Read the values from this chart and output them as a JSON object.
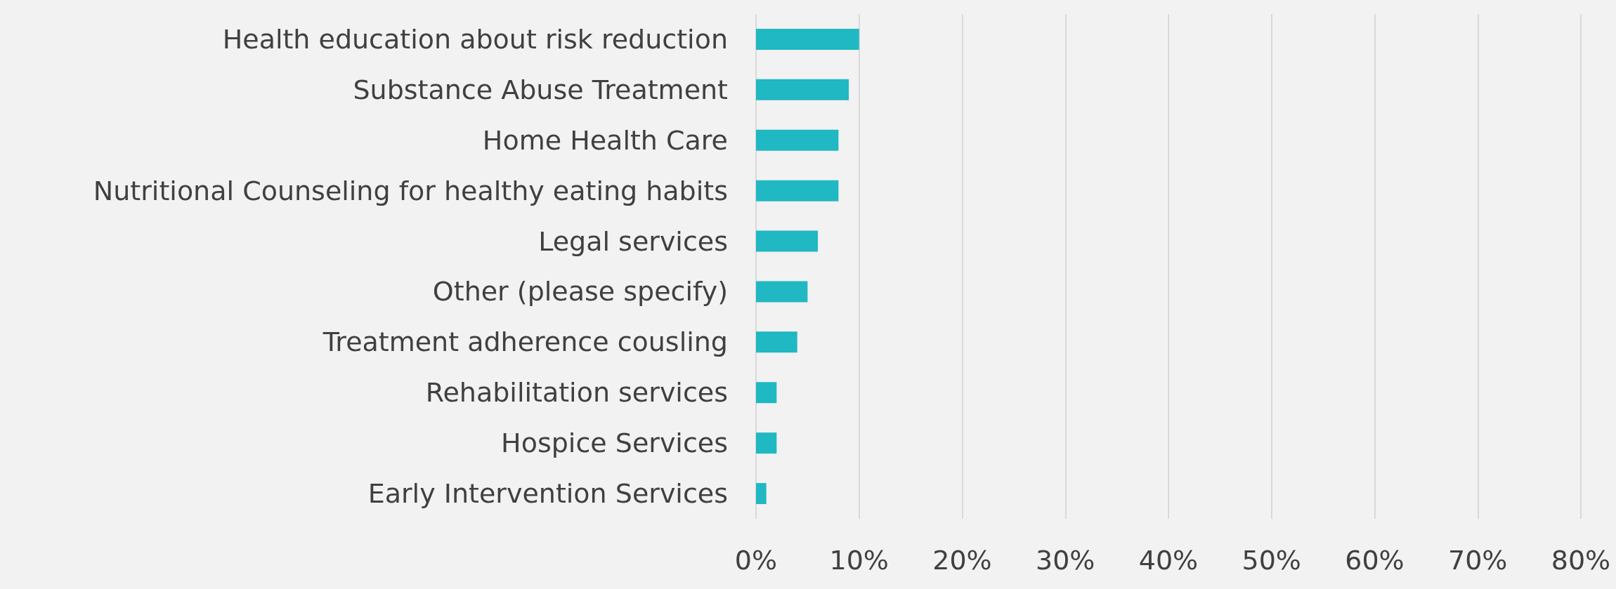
{
  "chart_data": {
    "type": "bar",
    "orientation": "horizontal",
    "categories": [
      "Health education about risk reduction",
      "Substance Abuse Treatment",
      "Home Health Care",
      "Nutritional Counseling for healthy eating habits",
      "Legal services",
      "Other (please specify)",
      "Treatment adherence cousling",
      "Rehabilitation services",
      "Hospice Services",
      "Early Intervention Services"
    ],
    "values": [
      10,
      9,
      8,
      8,
      6,
      5,
      4,
      2,
      2,
      1
    ],
    "color": "#20b8c2",
    "xlim": [
      0,
      80
    ],
    "xticks": [
      {
        "value": 0,
        "label": "0%"
      },
      {
        "value": 10,
        "label": "10%"
      },
      {
        "value": 20,
        "label": "20%"
      },
      {
        "value": 30,
        "label": "30%"
      },
      {
        "value": 40,
        "label": "40%"
      },
      {
        "value": 50,
        "label": "50%"
      },
      {
        "value": 60,
        "label": "60%"
      },
      {
        "value": 70,
        "label": "70%"
      },
      {
        "value": 80,
        "label": "80%"
      }
    ],
    "grid": "x"
  }
}
